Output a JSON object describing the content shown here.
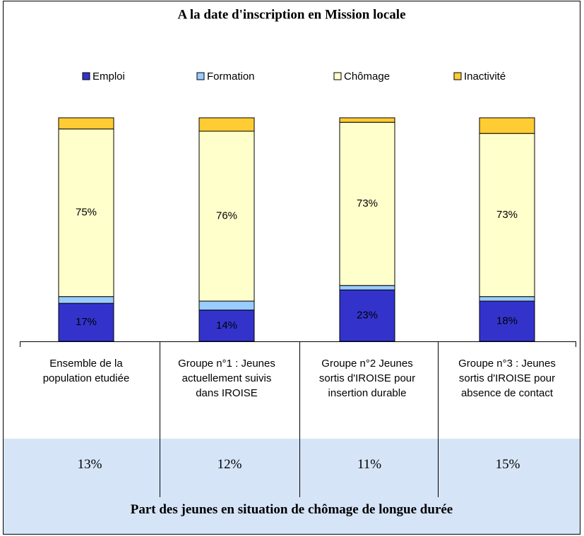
{
  "chart_data": {
    "type": "stacked_bar",
    "title": "A la date d'inscription en Mission locale",
    "categories": [
      "Ensemble de la population etudiée",
      "Groupe n°1 : Jeunes actuellement suivis dans IROISE",
      "Groupe n°2 Jeunes sortis d'IROISE pour insertion durable",
      "Groupe n°3 : Jeunes sortis d'IROISE pour absence de contact"
    ],
    "ylim": [
      0,
      100
    ],
    "series": [
      {
        "name": "Emploi",
        "color": "#3333cc",
        "values": [
          17,
          14,
          23,
          18
        ],
        "value_labels": [
          "17%",
          "14%",
          "23%",
          "18%"
        ]
      },
      {
        "name": "Formation",
        "color": "#99ccff",
        "values": [
          3,
          4,
          2,
          2
        ]
      },
      {
        "name": "Chômage",
        "color": "#ffffcc",
        "values": [
          75,
          76,
          73,
          73
        ],
        "value_labels": [
          "75%",
          "76%",
          "73%",
          "73%"
        ]
      },
      {
        "name": "Inactivité",
        "color": "#ffcc33",
        "values": [
          5,
          6,
          2,
          7
        ]
      }
    ]
  },
  "table": {
    "values": [
      "13%",
      "12%",
      "11%",
      "15%"
    ],
    "caption": "Part des jeunes en situation de chômage de longue durée"
  }
}
